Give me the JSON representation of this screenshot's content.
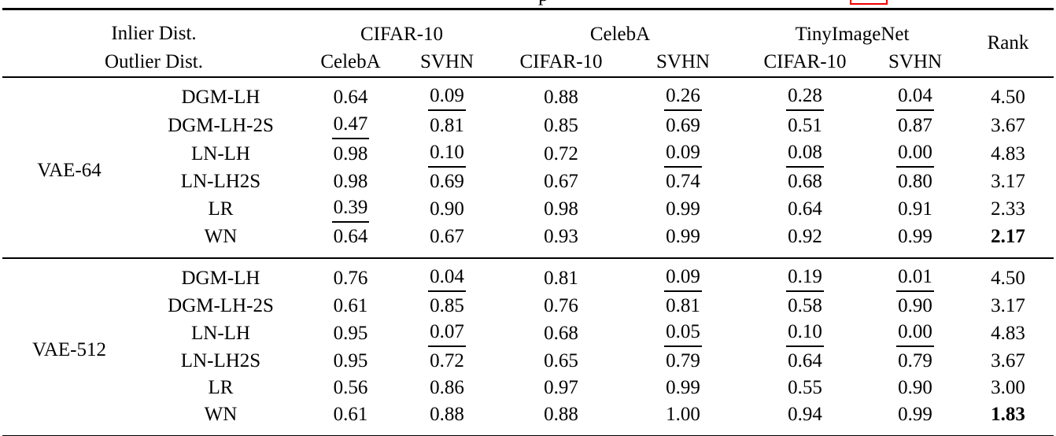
{
  "annotations": {
    "partial_caption_glyph": "p",
    "red_box_color": "#ee0000"
  },
  "table": {
    "header": {
      "inlier_label": "Inlier Dist.",
      "outlier_label": "Outlier Dist.",
      "groups": [
        {
          "label": "CIFAR-10",
          "cols": [
            "CelebA",
            "SVHN"
          ]
        },
        {
          "label": "CelebA",
          "cols": [
            "CIFAR-10",
            "SVHN"
          ]
        },
        {
          "label": "TinyImageNet",
          "cols": [
            "CIFAR-10",
            "SVHN"
          ]
        }
      ],
      "rank_label": "Rank"
    },
    "blocks": [
      {
        "group": "VAE-64",
        "rows": [
          {
            "method": "DGM-LH",
            "values": [
              "0.64",
              "0.09",
              "0.88",
              "0.26",
              "0.28",
              "0.04"
            ],
            "underlined": [
              false,
              true,
              false,
              true,
              true,
              true
            ],
            "rank": "4.50",
            "rank_bold": false
          },
          {
            "method": "DGM-LH-2S",
            "values": [
              "0.47",
              "0.81",
              "0.85",
              "0.69",
              "0.51",
              "0.87"
            ],
            "underlined": [
              true,
              false,
              false,
              false,
              false,
              false
            ],
            "rank": "3.67",
            "rank_bold": false
          },
          {
            "method": "LN-LH",
            "values": [
              "0.98",
              "0.10",
              "0.72",
              "0.09",
              "0.08",
              "0.00"
            ],
            "underlined": [
              false,
              true,
              false,
              true,
              true,
              true
            ],
            "rank": "4.83",
            "rank_bold": false
          },
          {
            "method": "LN-LH2S",
            "values": [
              "0.98",
              "0.69",
              "0.67",
              "0.74",
              "0.68",
              "0.80"
            ],
            "underlined": [
              false,
              false,
              false,
              false,
              false,
              false
            ],
            "rank": "3.17",
            "rank_bold": false
          },
          {
            "method": "LR",
            "values": [
              "0.39",
              "0.90",
              "0.98",
              "0.99",
              "0.64",
              "0.91"
            ],
            "underlined": [
              true,
              false,
              false,
              false,
              false,
              false
            ],
            "rank": "2.33",
            "rank_bold": false
          },
          {
            "method": "WN",
            "values": [
              "0.64",
              "0.67",
              "0.93",
              "0.99",
              "0.92",
              "0.99"
            ],
            "underlined": [
              false,
              false,
              false,
              false,
              false,
              false
            ],
            "rank": "2.17",
            "rank_bold": true
          }
        ]
      },
      {
        "group": "VAE-512",
        "rows": [
          {
            "method": "DGM-LH",
            "values": [
              "0.76",
              "0.04",
              "0.81",
              "0.09",
              "0.19",
              "0.01"
            ],
            "underlined": [
              false,
              true,
              false,
              true,
              true,
              true
            ],
            "rank": "4.50",
            "rank_bold": false
          },
          {
            "method": "DGM-LH-2S",
            "values": [
              "0.61",
              "0.85",
              "0.76",
              "0.81",
              "0.58",
              "0.90"
            ],
            "underlined": [
              false,
              false,
              false,
              false,
              false,
              false
            ],
            "rank": "3.17",
            "rank_bold": false
          },
          {
            "method": "LN-LH",
            "values": [
              "0.95",
              "0.07",
              "0.68",
              "0.05",
              "0.10",
              "0.00"
            ],
            "underlined": [
              false,
              true,
              false,
              true,
              true,
              true
            ],
            "rank": "4.83",
            "rank_bold": false
          },
          {
            "method": "LN-LH2S",
            "values": [
              "0.95",
              "0.72",
              "0.65",
              "0.79",
              "0.64",
              "0.79"
            ],
            "underlined": [
              false,
              false,
              false,
              false,
              false,
              false
            ],
            "rank": "3.67",
            "rank_bold": false
          },
          {
            "method": "LR",
            "values": [
              "0.56",
              "0.86",
              "0.97",
              "0.99",
              "0.55",
              "0.90"
            ],
            "underlined": [
              false,
              false,
              false,
              false,
              false,
              false
            ],
            "rank": "3.00",
            "rank_bold": false
          },
          {
            "method": "WN",
            "values": [
              "0.61",
              "0.88",
              "0.88",
              "1.00",
              "0.94",
              "0.99"
            ],
            "underlined": [
              false,
              false,
              false,
              false,
              false,
              false
            ],
            "rank": "1.83",
            "rank_bold": true
          }
        ]
      }
    ]
  }
}
